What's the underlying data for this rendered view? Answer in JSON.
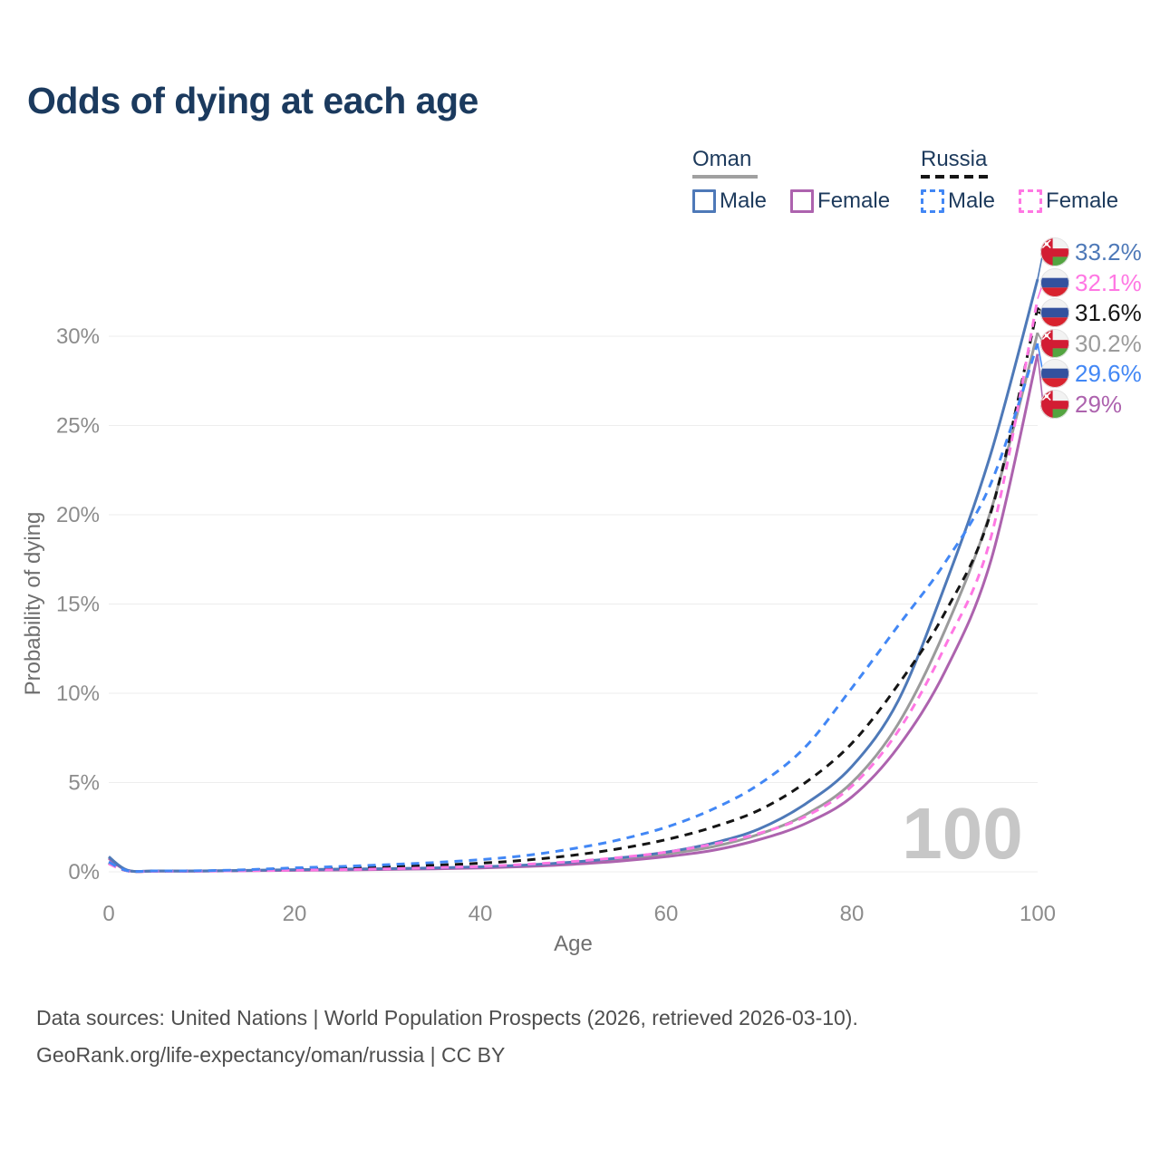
{
  "page": {
    "title": "Odds of dying at each age"
  },
  "legend": {
    "groups": [
      {
        "id": "oman",
        "label": "Oman",
        "underline_style": "solid",
        "underline_color": "#a0a0a0",
        "items": [
          {
            "id": "oman-male",
            "label": "Male",
            "color": "#4e79b8",
            "dashed": false
          },
          {
            "id": "oman-female",
            "label": "Female",
            "color": "#ad63ae",
            "dashed": false
          }
        ]
      },
      {
        "id": "russia",
        "label": "Russia",
        "underline_style": "dashed",
        "underline_color": "#151515",
        "items": [
          {
            "id": "russia-male",
            "label": "Male",
            "color": "#4287f5",
            "dashed": true
          },
          {
            "id": "russia-female",
            "label": "Female",
            "color": "#ff77e3",
            "dashed": true
          }
        ]
      }
    ]
  },
  "watermark": "100",
  "footer": {
    "line1": "Data sources: United Nations | World Population Prospects (2026, retrieved 2026-03-10).",
    "line2": "GeoRank.org/life-expectancy/oman/russia | CC BY"
  },
  "chart_data": {
    "type": "line",
    "title": "Odds of dying at each age",
    "xlabel": "Age",
    "ylabel": "Probability of dying",
    "xlim": [
      0,
      100
    ],
    "ylim_percent": [
      0,
      34
    ],
    "x_ticks": [
      0,
      20,
      40,
      60,
      80,
      100
    ],
    "y_ticks": [
      {
        "value": 0,
        "label": "0%"
      },
      {
        "value": 5,
        "label": "5%"
      },
      {
        "value": 10,
        "label": "10%"
      },
      {
        "value": 15,
        "label": "15%"
      },
      {
        "value": 20,
        "label": "20%"
      },
      {
        "value": 25,
        "label": "25%"
      },
      {
        "value": 30,
        "label": "30%"
      }
    ],
    "grid": "horizontal-only",
    "legend_position": "top-right",
    "ages": [
      0,
      2,
      5,
      10,
      15,
      20,
      25,
      30,
      35,
      40,
      45,
      50,
      55,
      60,
      65,
      70,
      75,
      80,
      85,
      90,
      95,
      100
    ],
    "series": [
      {
        "id": "oman-all",
        "name": "Oman (both sexes)",
        "country": "Oman",
        "sex": "All",
        "color": "#9b9b9b",
        "dashed": false,
        "flag": "oman",
        "end_value": 30.2,
        "end_label": "30.2%",
        "values": [
          0.8,
          0.085,
          0.045,
          0.045,
          0.07,
          0.1,
          0.13,
          0.16,
          0.2,
          0.25,
          0.34,
          0.49,
          0.69,
          1.0,
          1.4,
          2.1,
          3.2,
          5.0,
          8.3,
          13.5,
          20.3,
          30.2
        ]
      },
      {
        "id": "oman-female",
        "name": "Oman Female",
        "country": "Oman",
        "sex": "Female",
        "color": "#ad63ae",
        "dashed": false,
        "flag": "oman",
        "end_value": 29.0,
        "end_label": "29%",
        "values": [
          0.75,
          0.08,
          0.04,
          0.04,
          0.06,
          0.08,
          0.1,
          0.13,
          0.17,
          0.22,
          0.3,
          0.42,
          0.6,
          0.85,
          1.2,
          1.8,
          2.7,
          4.2,
          7.0,
          11.2,
          17.5,
          29.0
        ]
      },
      {
        "id": "oman-male",
        "name": "Oman Male",
        "country": "Oman",
        "sex": "Male",
        "color": "#4e79b8",
        "dashed": false,
        "flag": "oman",
        "end_value": 33.2,
        "end_label": "33.2%",
        "values": [
          0.85,
          0.09,
          0.05,
          0.05,
          0.08,
          0.12,
          0.15,
          0.18,
          0.22,
          0.28,
          0.38,
          0.55,
          0.78,
          1.1,
          1.6,
          2.4,
          3.8,
          5.9,
          9.6,
          16.0,
          23.5,
          33.2
        ]
      },
      {
        "id": "russia-all",
        "name": "Russia (both sexes)",
        "country": "Russia",
        "sex": "All",
        "color": "#151515",
        "dashed": true,
        "flag": "russia",
        "end_value": 31.6,
        "end_label": "31.6%",
        "values": [
          0.5,
          0.055,
          0.04,
          0.05,
          0.09,
          0.15,
          0.21,
          0.28,
          0.37,
          0.48,
          0.66,
          0.93,
          1.3,
          1.8,
          2.5,
          3.45,
          5.0,
          7.2,
          10.5,
          14.5,
          20.2,
          31.6
        ]
      },
      {
        "id": "russia-female",
        "name": "Russia Female",
        "country": "Russia",
        "sex": "Female",
        "color": "#ff77e3",
        "dashed": true,
        "flag": "russia",
        "end_value": 32.1,
        "end_label": "32.1%",
        "values": [
          0.45,
          0.05,
          0.03,
          0.04,
          0.06,
          0.09,
          0.12,
          0.17,
          0.23,
          0.3,
          0.42,
          0.58,
          0.8,
          1.1,
          1.55,
          2.15,
          3.1,
          4.8,
          7.9,
          12.6,
          18.8,
          32.1
        ]
      },
      {
        "id": "russia-male",
        "name": "Russia Male",
        "country": "Russia",
        "sex": "Male",
        "color": "#4287f5",
        "dashed": true,
        "flag": "russia",
        "end_value": 29.6,
        "end_label": "29.6%",
        "values": [
          0.55,
          0.06,
          0.05,
          0.06,
          0.12,
          0.22,
          0.3,
          0.4,
          0.52,
          0.68,
          0.92,
          1.3,
          1.8,
          2.5,
          3.5,
          4.9,
          7.0,
          10.3,
          13.8,
          17.3,
          21.8,
          29.6
        ]
      }
    ]
  }
}
